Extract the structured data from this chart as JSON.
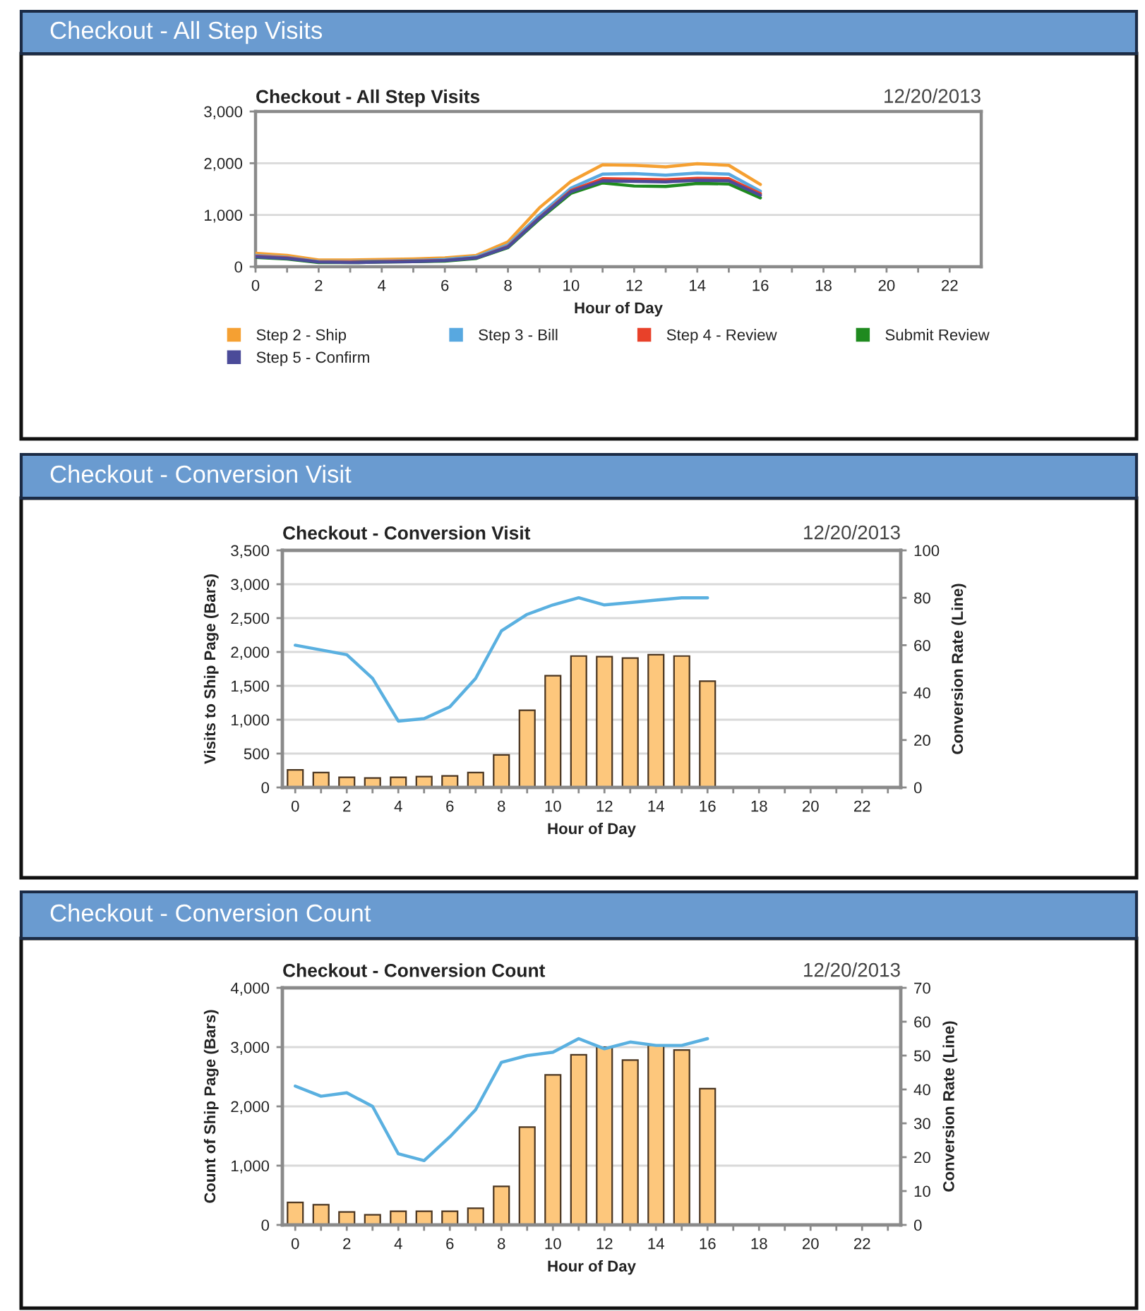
{
  "chart_data": [
    {
      "type": "line",
      "title": "Checkout - All Step Visits",
      "subtitle": "Checkout - All Step Visits",
      "annotations": [
        "12/20/2013"
      ],
      "xlabel": "Hour of Day",
      "x": [
        0,
        1,
        2,
        3,
        4,
        5,
        6,
        7,
        8,
        9,
        10,
        11,
        12,
        13,
        14,
        15,
        16
      ],
      "series": [
        {
          "name": "Step 2 - Ship",
          "color": "#f5a032",
          "values": [
            260,
            220,
            130,
            130,
            140,
            150,
            170,
            220,
            480,
            1140,
            1650,
            1970,
            1960,
            1930,
            1990,
            1960,
            1590
          ]
        },
        {
          "name": "Step 3 - Bill",
          "color": "#58a8e0",
          "values": [
            220,
            180,
            100,
            100,
            110,
            120,
            140,
            190,
            420,
            1000,
            1520,
            1790,
            1800,
            1770,
            1810,
            1790,
            1460
          ]
        },
        {
          "name": "Step 4 - Review",
          "color": "#e8412a",
          "values": [
            200,
            170,
            90,
            90,
            100,
            110,
            120,
            170,
            390,
            950,
            1470,
            1700,
            1690,
            1680,
            1710,
            1700,
            1410
          ]
        },
        {
          "name": "Submit Review",
          "color": "#1f8a1f",
          "values": [
            180,
            150,
            80,
            80,
            90,
            100,
            110,
            160,
            370,
            920,
            1420,
            1620,
            1560,
            1550,
            1610,
            1600,
            1330
          ]
        },
        {
          "name": "Step 5 - Confirm",
          "color": "#4b4b99",
          "values": [
            190,
            160,
            90,
            80,
            90,
            100,
            120,
            170,
            380,
            940,
            1450,
            1660,
            1650,
            1640,
            1670,
            1660,
            1380
          ]
        }
      ],
      "xlim": [
        0,
        23
      ],
      "xticks": [
        0,
        {
          "value": 1,
          "label": null
        },
        2,
        {
          "value": 3,
          "label": null
        },
        4,
        {
          "value": 5,
          "label": null
        },
        6,
        {
          "value": 7,
          "label": null
        },
        8,
        {
          "value": 9,
          "label": null
        },
        10,
        {
          "value": 11,
          "label": null
        },
        12,
        {
          "value": 13,
          "label": null
        },
        14,
        {
          "value": 15,
          "label": null
        },
        16,
        {
          "value": 17,
          "label": null
        },
        18,
        {
          "value": 19,
          "label": null
        },
        20,
        {
          "value": 21,
          "label": null
        },
        22
      ],
      "ylim": [
        0,
        3000
      ],
      "yticks": [
        0,
        {
          "value": 1000,
          "label": "1,000"
        },
        {
          "value": 2000,
          "label": "2,000"
        },
        {
          "value": 3000,
          "label": "3,000"
        }
      ],
      "grid": "y",
      "legend": "bottom"
    },
    {
      "type": "bar",
      "title": "Checkout - Conversion Visit",
      "subtitle": "Checkout - Conversion Visit",
      "annotations": [
        "12/20/2013"
      ],
      "xlabel": "Hour of Day",
      "ylabel": "Visits to Ship Page (Bars)",
      "y2label": "Conversion Rate (Line)",
      "x": [
        0,
        1,
        2,
        3,
        4,
        5,
        6,
        7,
        8,
        9,
        10,
        11,
        12,
        13,
        14,
        15,
        16
      ],
      "series": [
        {
          "color": "#fdc77c",
          "values": [
            260,
            220,
            150,
            140,
            150,
            160,
            170,
            220,
            480,
            1140,
            1650,
            1940,
            1930,
            1910,
            1960,
            1940,
            1570
          ]
        },
        {
          "type": "line",
          "axis": "y2",
          "color": "#5ab0e0",
          "values": [
            60,
            58,
            56,
            46,
            28,
            29,
            34,
            46,
            66,
            73,
            77,
            80,
            77,
            78,
            79,
            80,
            80
          ]
        }
      ],
      "xlim": [
        -0.5,
        23.5
      ],
      "xticks": [
        0,
        {
          "value": 1,
          "label": null
        },
        2,
        {
          "value": 3,
          "label": null
        },
        4,
        {
          "value": 5,
          "label": null
        },
        6,
        {
          "value": 7,
          "label": null
        },
        8,
        {
          "value": 9,
          "label": null
        },
        10,
        {
          "value": 11,
          "label": null
        },
        12,
        {
          "value": 13,
          "label": null
        },
        14,
        {
          "value": 15,
          "label": null
        },
        16,
        {
          "value": 17,
          "label": null
        },
        18,
        {
          "value": 19,
          "label": null
        },
        20,
        {
          "value": 21,
          "label": null
        },
        22,
        {
          "value": 23,
          "label": null
        }
      ],
      "ylim": [
        0,
        3500
      ],
      "yticks": [
        0,
        500,
        {
          "value": 1000,
          "label": "1,000"
        },
        {
          "value": 1500,
          "label": "1,500"
        },
        {
          "value": 2000,
          "label": "2,000"
        },
        {
          "value": 2500,
          "label": "2,500"
        },
        {
          "value": 3000,
          "label": "3,000"
        },
        {
          "value": 3500,
          "label": "3,500"
        }
      ],
      "y2lim": [
        0,
        100
      ],
      "y2ticks": [
        0,
        20,
        40,
        60,
        80,
        100
      ],
      "grid": "y"
    },
    {
      "type": "bar",
      "title": "Checkout - Conversion Count",
      "subtitle": "Checkout - Conversion Count",
      "annotations": [
        "12/20/2013"
      ],
      "xlabel": "Hour of Day",
      "ylabel": "Count of Ship Page (Bars)",
      "y2label": "Conversion Rate (Line)",
      "x": [
        0,
        1,
        2,
        3,
        4,
        5,
        6,
        7,
        8,
        9,
        10,
        11,
        12,
        13,
        14,
        15,
        16
      ],
      "series": [
        {
          "color": "#fdc77c",
          "values": [
            380,
            340,
            220,
            170,
            230,
            230,
            230,
            280,
            650,
            1650,
            2530,
            2870,
            3000,
            2780,
            3030,
            2950,
            2300
          ]
        },
        {
          "type": "line",
          "axis": "y2",
          "color": "#5ab0e0",
          "values": [
            41,
            38,
            39,
            35,
            21,
            19,
            26,
            34,
            48,
            50,
            51,
            55,
            52,
            54,
            53,
            53,
            55
          ]
        }
      ],
      "xlim": [
        -0.5,
        23.5
      ],
      "xticks": [
        0,
        {
          "value": 1,
          "label": null
        },
        2,
        {
          "value": 3,
          "label": null
        },
        4,
        {
          "value": 5,
          "label": null
        },
        6,
        {
          "value": 7,
          "label": null
        },
        8,
        {
          "value": 9,
          "label": null
        },
        10,
        {
          "value": 11,
          "label": null
        },
        12,
        {
          "value": 13,
          "label": null
        },
        14,
        {
          "value": 15,
          "label": null
        },
        16,
        {
          "value": 17,
          "label": null
        },
        18,
        {
          "value": 19,
          "label": null
        },
        20,
        {
          "value": 21,
          "label": null
        },
        22,
        {
          "value": 23,
          "label": null
        }
      ],
      "ylim": [
        0,
        4000
      ],
      "yticks": [
        0,
        {
          "value": 1000,
          "label": "1,000"
        },
        {
          "value": 2000,
          "label": "2,000"
        },
        {
          "value": 3000,
          "label": "3,000"
        },
        {
          "value": 4000,
          "label": "4,000"
        }
      ],
      "y2lim": [
        0,
        70
      ],
      "y2ticks": [
        0,
        10,
        20,
        30,
        40,
        50,
        60,
        70
      ],
      "grid": "y"
    }
  ]
}
